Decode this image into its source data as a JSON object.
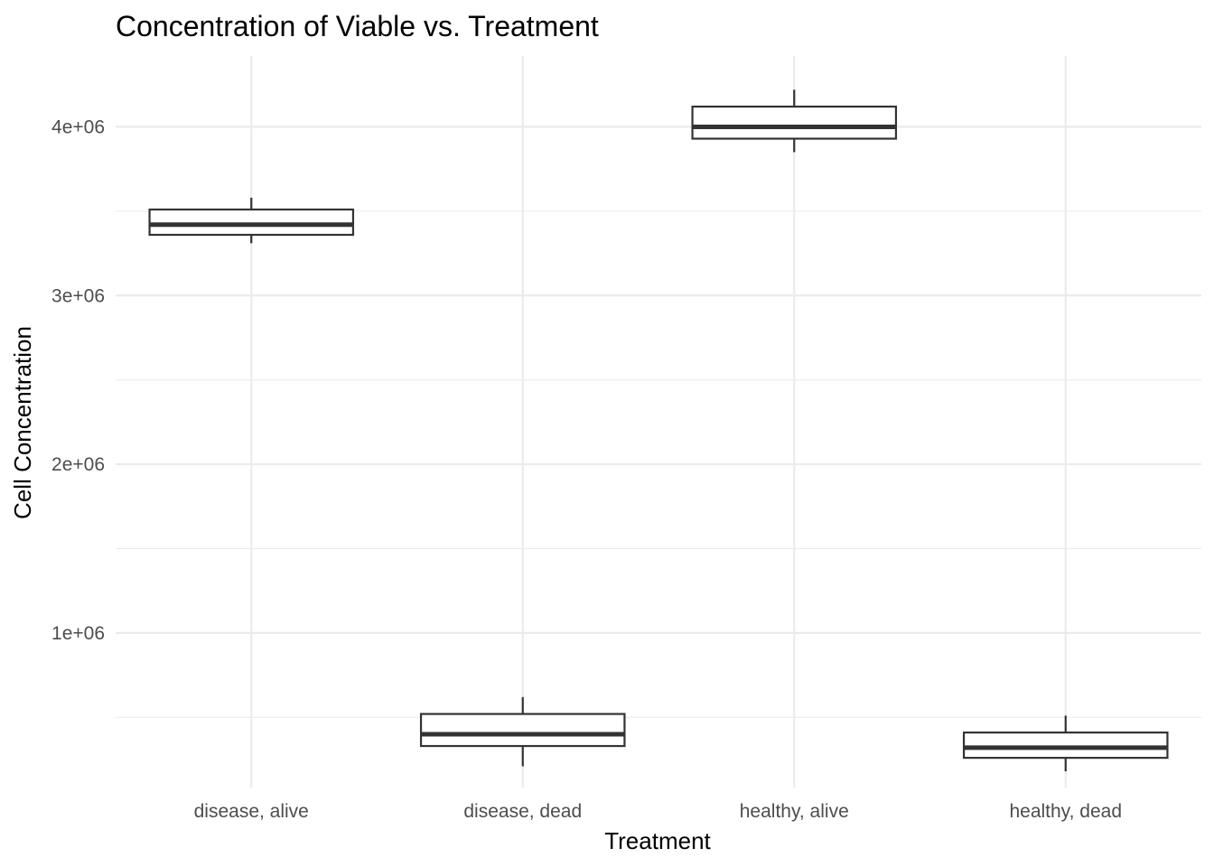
{
  "chart_data": {
    "type": "box",
    "title": "Concentration of Viable vs. Treatment",
    "xlabel": "Treatment",
    "ylabel": "Cell Concentration",
    "categories": [
      "disease, alive",
      "disease, dead",
      "healthy, alive",
      "healthy, dead"
    ],
    "y_ticks": [
      {
        "value": 1000000,
        "label": "1e+06"
      },
      {
        "value": 2000000,
        "label": "2e+06"
      },
      {
        "value": 3000000,
        "label": "3e+06"
      },
      {
        "value": 4000000,
        "label": "4e+06"
      }
    ],
    "y_minor": [
      500000,
      1500000,
      2500000,
      3500000
    ],
    "ylim": [
      84000,
      4420000
    ],
    "boxes": [
      {
        "category": "disease, alive",
        "min": 3310000,
        "q1": 3360000,
        "median": 3420000,
        "q3": 3510000,
        "max": 3580000
      },
      {
        "category": "disease, dead",
        "min": 210000,
        "q1": 330000,
        "median": 400000,
        "q3": 520000,
        "max": 620000
      },
      {
        "category": "healthy, alive",
        "min": 3850000,
        "q1": 3930000,
        "median": 4000000,
        "q3": 4120000,
        "max": 4220000
      },
      {
        "category": "healthy, dead",
        "min": 180000,
        "q1": 260000,
        "median": 320000,
        "q3": 410000,
        "max": 510000
      }
    ],
    "grid": true,
    "legend": "none",
    "colors": {
      "box_line": "#333333",
      "box_fill": "#ffffff",
      "grid": "#ebebeb"
    }
  }
}
